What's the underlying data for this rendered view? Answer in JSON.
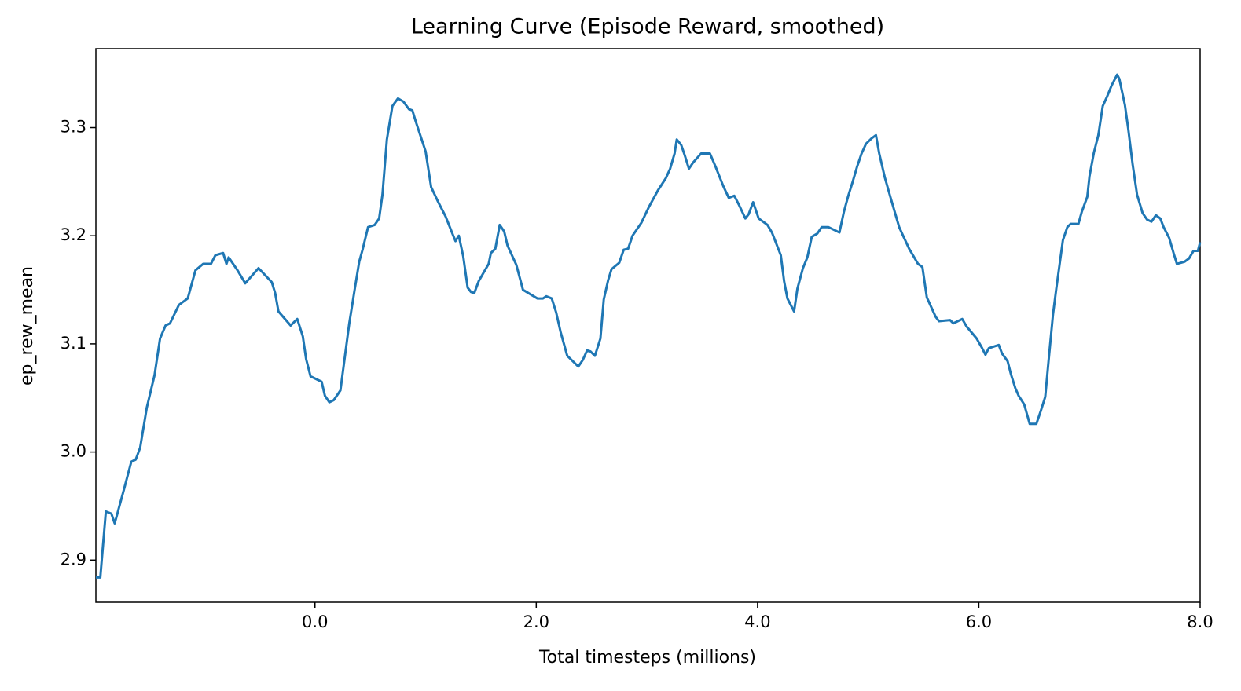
{
  "chart_data": {
    "type": "line",
    "title": "Learning Curve (Episode Reward, smoothed)",
    "xlabel": "Total timesteps (millions)",
    "ylabel": "ep_rew_mean",
    "xlim": [
      -1.98,
      8.0
    ],
    "ylim": [
      2.861,
      3.373
    ],
    "xticks": [
      {
        "value": 0,
        "label": "0.0"
      },
      {
        "value": 2,
        "label": "2.0"
      },
      {
        "value": 4,
        "label": "4.0"
      },
      {
        "value": 6,
        "label": "6.0"
      },
      {
        "value": 8,
        "label": "8.0"
      }
    ],
    "yticks": [
      2.9,
      {
        "value": 3,
        "label": "3.0"
      },
      3.1,
      3.2,
      3.3
    ],
    "grid": false,
    "series": [
      {
        "color": "#1f77b4",
        "x": [
          -1.98,
          -1.94,
          -1.89,
          -1.84,
          -1.81,
          -1.73,
          -1.66,
          -1.62,
          -1.58,
          -1.52,
          -1.45,
          -1.4,
          -1.35,
          -1.31,
          -1.23,
          -1.15,
          -1.08,
          -1.01,
          -0.94,
          -0.9,
          -0.83,
          -0.8,
          -0.78,
          -0.7,
          -0.63,
          -0.51,
          -0.39,
          -0.36,
          -0.33,
          -0.22,
          -0.16,
          -0.11,
          -0.08,
          -0.04,
          0.06,
          0.09,
          0.13,
          0.17,
          0.23,
          0.27,
          0.31,
          0.36,
          0.4,
          0.43,
          0.48,
          0.54,
          0.58,
          0.61,
          0.65,
          0.7,
          0.75,
          0.8,
          0.85,
          0.88,
          0.91,
          1.0,
          1.05,
          1.11,
          1.18,
          1.25,
          1.27,
          1.3,
          1.34,
          1.38,
          1.41,
          1.44,
          1.48,
          1.57,
          1.59,
          1.63,
          1.67,
          1.71,
          1.74,
          1.82,
          1.88,
          2.01,
          2.06,
          2.09,
          2.14,
          2.18,
          2.22,
          2.28,
          2.38,
          2.42,
          2.46,
          2.49,
          2.53,
          2.58,
          2.61,
          2.65,
          2.68,
          2.75,
          2.79,
          2.83,
          2.87,
          2.95,
          3.02,
          3.1,
          3.17,
          3.21,
          3.25,
          3.27,
          3.31,
          3.34,
          3.38,
          3.42,
          3.49,
          3.57,
          3.62,
          3.69,
          3.74,
          3.79,
          3.83,
          3.89,
          3.92,
          3.96,
          4.01,
          4.09,
          4.13,
          4.21,
          4.24,
          4.27,
          4.33,
          4.36,
          4.41,
          4.45,
          4.49,
          4.54,
          4.58,
          4.64,
          4.74,
          4.78,
          4.82,
          4.86,
          4.9,
          4.94,
          4.98,
          5.03,
          5.07,
          5.1,
          5.15,
          5.2,
          5.24,
          5.28,
          5.32,
          5.37,
          5.45,
          5.49,
          5.53,
          5.61,
          5.64,
          5.74,
          5.77,
          5.85,
          5.89,
          5.98,
          6.03,
          6.06,
          6.09,
          6.18,
          6.21,
          6.26,
          6.29,
          6.33,
          6.36,
          6.41,
          6.46,
          6.52,
          6.56,
          6.6,
          6.63,
          6.67,
          6.7,
          6.76,
          6.8,
          6.83,
          6.9,
          6.93,
          6.98,
          7.0,
          7.04,
          7.08,
          7.12,
          7.16,
          7.2,
          7.25,
          7.27,
          7.32,
          7.35,
          7.39,
          7.43,
          7.48,
          7.52,
          7.56,
          7.6,
          7.64,
          7.67,
          7.72,
          7.76,
          7.79,
          7.86,
          7.9,
          7.94,
          7.98,
          8.0
        ],
        "values": [
          2.884,
          2.884,
          2.945,
          2.943,
          2.934,
          2.964,
          2.991,
          2.993,
          3.004,
          3.041,
          3.071,
          3.105,
          3.117,
          3.119,
          3.136,
          3.142,
          3.168,
          3.174,
          3.174,
          3.182,
          3.184,
          3.174,
          3.18,
          3.168,
          3.156,
          3.17,
          3.157,
          3.147,
          3.13,
          3.117,
          3.123,
          3.107,
          3.086,
          3.07,
          3.065,
          3.052,
          3.046,
          3.048,
          3.057,
          3.088,
          3.119,
          3.151,
          3.176,
          3.187,
          3.208,
          3.21,
          3.216,
          3.238,
          3.289,
          3.32,
          3.327,
          3.324,
          3.317,
          3.316,
          3.306,
          3.278,
          3.245,
          3.232,
          3.218,
          3.2,
          3.195,
          3.2,
          3.181,
          3.152,
          3.148,
          3.147,
          3.158,
          3.174,
          3.184,
          3.188,
          3.21,
          3.204,
          3.191,
          3.173,
          3.15,
          3.142,
          3.142,
          3.144,
          3.142,
          3.129,
          3.111,
          3.089,
          3.079,
          3.085,
          3.094,
          3.093,
          3.089,
          3.105,
          3.141,
          3.159,
          3.169,
          3.175,
          3.187,
          3.188,
          3.2,
          3.212,
          3.227,
          3.242,
          3.253,
          3.262,
          3.276,
          3.289,
          3.284,
          3.275,
          3.262,
          3.268,
          3.276,
          3.276,
          3.264,
          3.246,
          3.235,
          3.237,
          3.229,
          3.216,
          3.22,
          3.231,
          3.216,
          3.21,
          3.203,
          3.182,
          3.158,
          3.142,
          3.13,
          3.151,
          3.17,
          3.18,
          3.199,
          3.202,
          3.208,
          3.208,
          3.203,
          3.222,
          3.237,
          3.25,
          3.264,
          3.276,
          3.285,
          3.29,
          3.293,
          3.276,
          3.254,
          3.236,
          3.222,
          3.208,
          3.199,
          3.188,
          3.174,
          3.171,
          3.143,
          3.125,
          3.121,
          3.122,
          3.119,
          3.123,
          3.116,
          3.105,
          3.096,
          3.09,
          3.096,
          3.099,
          3.091,
          3.084,
          3.072,
          3.059,
          3.052,
          3.044,
          3.026,
          3.026,
          3.038,
          3.051,
          3.084,
          3.127,
          3.151,
          3.196,
          3.208,
          3.211,
          3.211,
          3.222,
          3.236,
          3.255,
          3.277,
          3.293,
          3.32,
          3.329,
          3.339,
          3.349,
          3.345,
          3.321,
          3.299,
          3.266,
          3.238,
          3.221,
          3.215,
          3.213,
          3.219,
          3.216,
          3.208,
          3.198,
          3.184,
          3.174,
          3.176,
          3.179,
          3.186,
          3.186,
          3.194
        ]
      }
    ]
  }
}
